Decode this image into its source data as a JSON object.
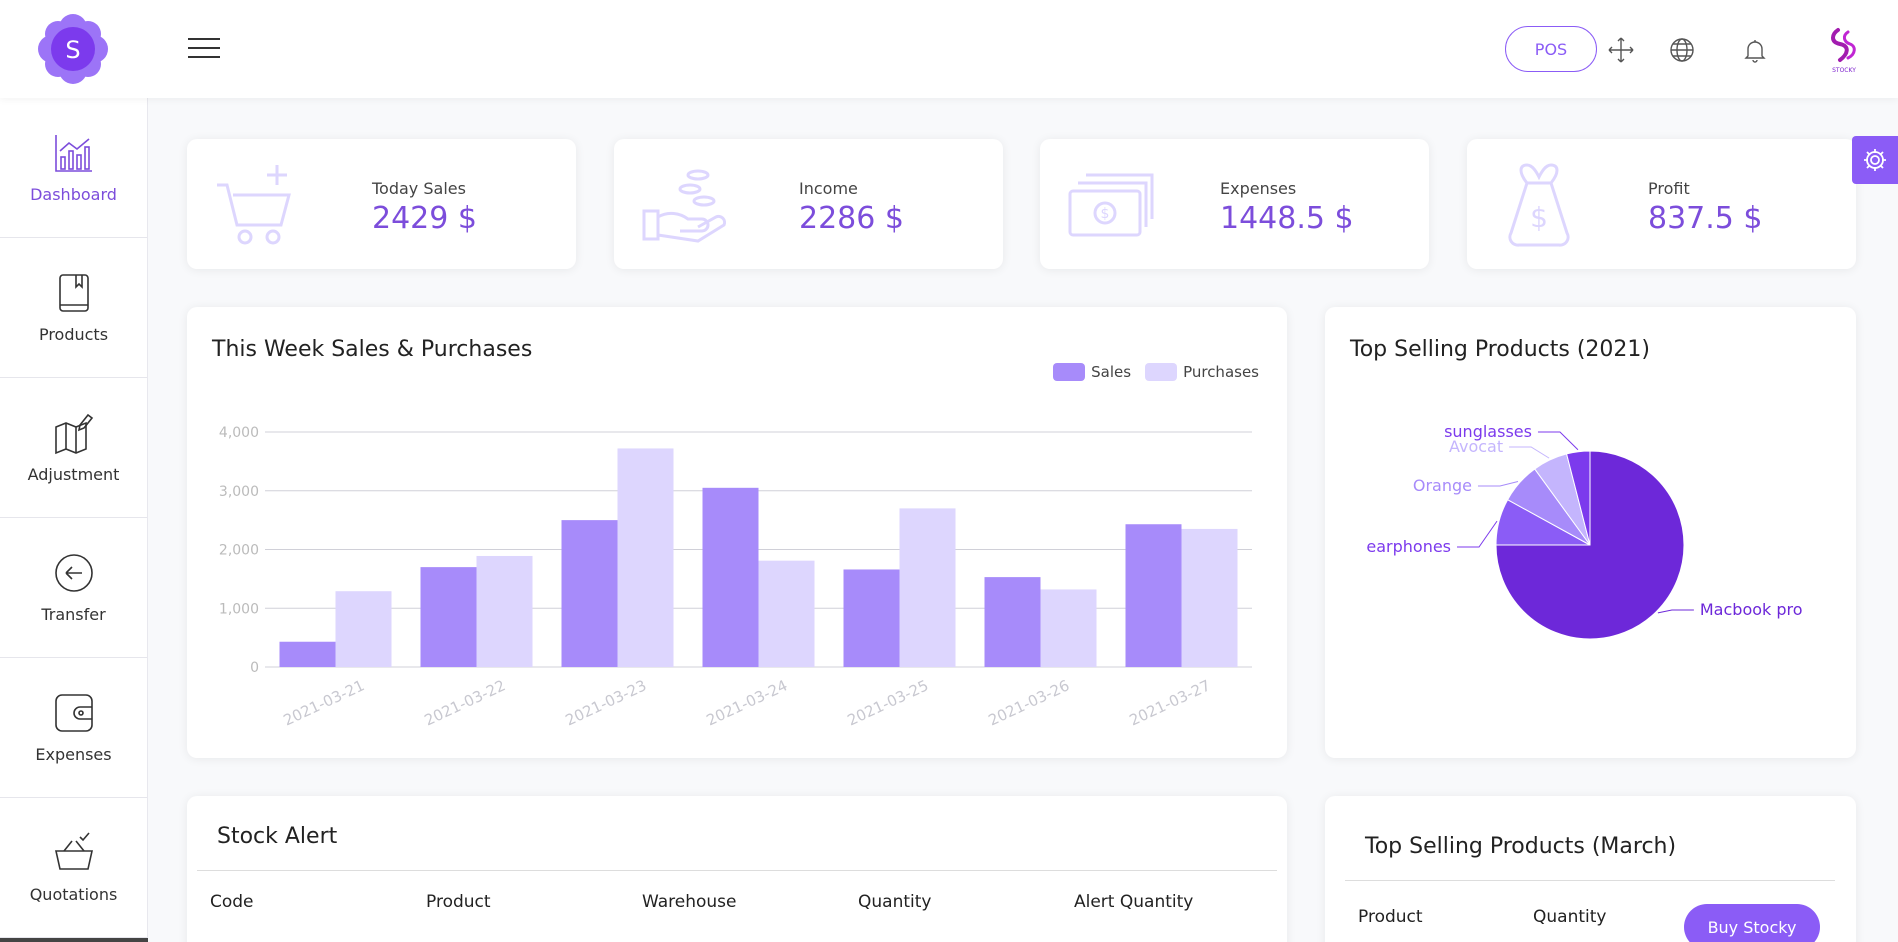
{
  "header": {
    "pos_label": "POS",
    "logo_letter": "S",
    "brand_small": "STOCKY",
    "icons": [
      "menu-icon",
      "fullscreen-icon",
      "globe-icon",
      "bell-icon"
    ]
  },
  "sidebar": {
    "items": [
      {
        "label": "Dashboard",
        "icon": "chart-icon",
        "active": true
      },
      {
        "label": "Products",
        "icon": "book-icon",
        "active": false
      },
      {
        "label": "Adjustment",
        "icon": "map-pencil-icon",
        "active": false
      },
      {
        "label": "Transfer",
        "icon": "arrow-back-circle-icon",
        "active": false
      },
      {
        "label": "Expenses",
        "icon": "wallet-icon",
        "active": false
      },
      {
        "label": "Quotations",
        "icon": "basket-check-icon",
        "active": false
      }
    ]
  },
  "stats": [
    {
      "label": "Today Sales",
      "value": "2429 $",
      "icon": "cart-plus-icon"
    },
    {
      "label": "Income",
      "value": "2286 $",
      "icon": "hand-coins-icon"
    },
    {
      "label": "Expenses",
      "value": "1448.5 $",
      "icon": "cash-icon"
    },
    {
      "label": "Profit",
      "value": "837.5 $",
      "icon": "money-bag-icon"
    }
  ],
  "weekly": {
    "title": "This Week Sales & Purchases",
    "legend": [
      "Sales",
      "Purchases"
    ]
  },
  "top_year": {
    "title": "Top Selling Products (2021)"
  },
  "stock_alert": {
    "title": "Stock Alert",
    "columns": [
      "Code",
      "Product",
      "Warehouse",
      "Quantity",
      "Alert Quantity"
    ]
  },
  "top_month": {
    "title": "Top Selling Products (March)",
    "columns": [
      "Product",
      "Quantity"
    ]
  },
  "buy_label": "Buy Stocky",
  "colors": {
    "accent": "#8b5cf6",
    "accent_dark": "#6d28d9",
    "sales": "#a78bfa",
    "purchases": "#ddd6fe"
  },
  "chart_data": [
    {
      "type": "bar",
      "categories": [
        "2021-03-21",
        "2021-03-22",
        "2021-03-23",
        "2021-03-24",
        "2021-03-25",
        "2021-03-26",
        "2021-03-27"
      ],
      "series": [
        {
          "name": "Sales",
          "values": [
            430,
            1700,
            2500,
            3050,
            1660,
            1530,
            2430
          ]
        },
        {
          "name": "Purchases",
          "values": [
            1290,
            1890,
            3720,
            1810,
            2700,
            1320,
            2350
          ]
        }
      ],
      "yticks": [
        "0",
        "1,000",
        "2,000",
        "3,000",
        "4,000"
      ],
      "ylim": [
        0,
        4000
      ],
      "legend": "top-right",
      "grid": true
    },
    {
      "type": "pie",
      "labels": [
        "Macbook pro",
        "earphones",
        "Orange",
        "Avocat",
        "sunglasses"
      ],
      "values": [
        75,
        8,
        7,
        6,
        4
      ],
      "colors": [
        "#6d28d9",
        "#8b5cf6",
        "#a78bfa",
        "#c4b5fd",
        "#7c3aed"
      ]
    }
  ]
}
